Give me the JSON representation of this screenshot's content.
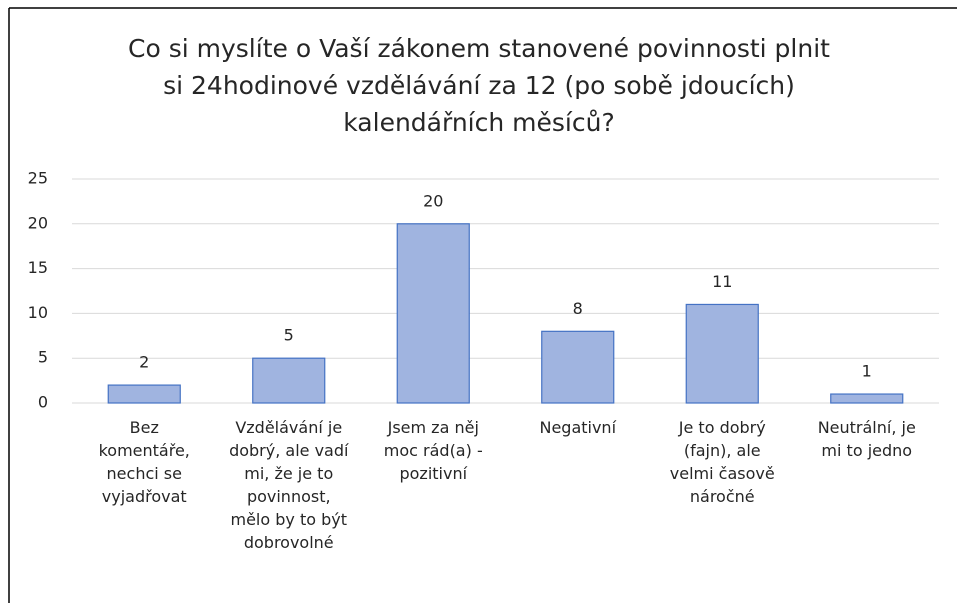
{
  "chart_data": {
    "type": "bar",
    "title": "Co si myslíte o Vaší zákonem stanovené povinnosti plnit\nsi 24hodinové vzdělávání za 12 (po sobě jdoucích)\nkalendářních měsíců?",
    "categories": [
      "Bez\nkomentáře,\nnechci se\nvyjadřovat",
      "Vzdělávání je\ndobrý, ale vadí\nmi, že je to\npovinnost,\nmělo by to být\ndobrovolné",
      "Jsem za něj\nmoc rád(a) -\npozitivní",
      "Negativní",
      "Je to dobrý\n(fajn), ale\nvelmi časově\nnáročné",
      "Neutrální, je\nmi to jedno"
    ],
    "values": [
      2,
      5,
      20,
      8,
      11,
      1
    ],
    "color": "#a0b4e0",
    "ylim": [
      0,
      25
    ],
    "yticks": [
      0,
      5,
      10,
      15,
      20,
      25
    ],
    "grid": true
  }
}
